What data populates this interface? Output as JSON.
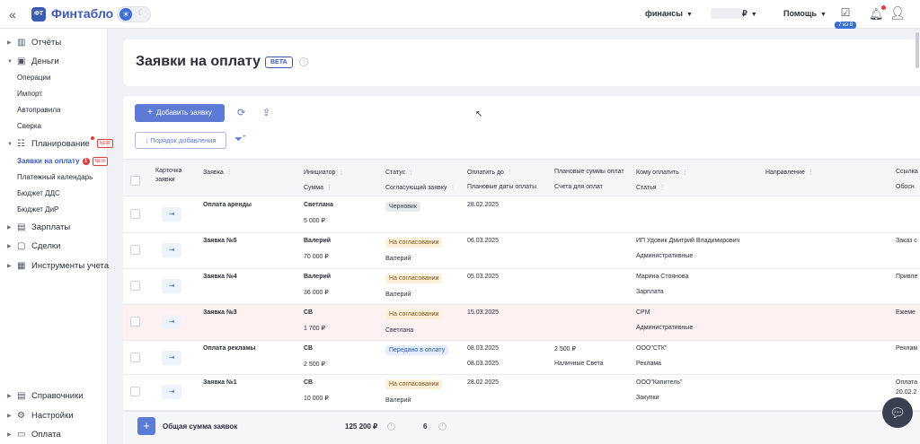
{
  "app": {
    "logo_badge": "ФТ",
    "logo_text": "Финтабло",
    "collapse_icon": "«"
  },
  "topbar": {
    "company": "финансы",
    "currency": "₽",
    "help": "Помощь",
    "tasks_badge": "7 из 8"
  },
  "sidebar": {
    "top_items": [
      {
        "label": "Отчёты",
        "icon": "chart-icon",
        "expanded": false
      },
      {
        "label": "Деньги",
        "icon": "wallet-icon",
        "expanded": true
      }
    ],
    "money_sub": [
      "Операции",
      "Импорт",
      "Автоправила",
      "Сверка"
    ],
    "planning": {
      "label": "Планирование",
      "new": "NEW"
    },
    "planning_sub": [
      {
        "label": "Заявки на оплату",
        "count": "1",
        "new": "NEW"
      },
      {
        "label": "Платежный календарь"
      },
      {
        "label": "Бюджет ДДС"
      },
      {
        "label": "Бюджет ДиР"
      }
    ],
    "mid_items": [
      "Зарплаты",
      "Сделки",
      "Инструменты учета"
    ],
    "bottom_items": [
      "Справочники",
      "Настройки",
      "Оплата"
    ]
  },
  "page": {
    "title": "Заявки на оплату",
    "beta": "BETA",
    "info": "i"
  },
  "toolbar": {
    "add_label": "Добавить заявку",
    "sort_label": "↓  Порядок добавления"
  },
  "table": {
    "headers": {
      "card": "Карточка заявки",
      "request": "Заявка",
      "initiator": "Инициатор",
      "amount": "Сумма",
      "status": "Статус",
      "approver": "Согласующий заявку",
      "pay_by": "Оплатить до",
      "planned_dates": "Плановые даты оплаты",
      "planned_sums": "Плановые суммы оплат",
      "bills": "Счета для оплат",
      "payee": "Кому оплатить",
      "article": "Статья",
      "direction": "Направление",
      "link": "Ссылка",
      "reason": "Обосн"
    },
    "rows": [
      {
        "name": "Оплата аренды",
        "initiator": "Светлана",
        "amount": "5 000 ₽",
        "status": "Черновик",
        "status_type": "draft",
        "approver": "",
        "pay_by": "28.02.2025",
        "pay_by2": "",
        "psum": "",
        "bill": "",
        "payee": "",
        "article": "",
        "extra": "",
        "extra2": "",
        "highlight": false
      },
      {
        "name": "Заявка №5",
        "initiator": "Валерий",
        "amount": "70 000 ₽",
        "status": "На согласовании",
        "status_type": "app",
        "approver": "Валерий",
        "pay_by": "06.03.2025",
        "pay_by2": "",
        "psum": "",
        "bill": "",
        "payee": "ИП Удовик Дмитрий Владимирович",
        "article": "Административные",
        "extra": "Заказ с",
        "extra2": "",
        "highlight": false
      },
      {
        "name": "Заявка №4",
        "initiator": "Валерий",
        "amount": "36 000 ₽",
        "status": "На согласовании",
        "status_type": "app",
        "approver": "Валерий",
        "pay_by": "05.03.2025",
        "pay_by2": "",
        "psum": "",
        "bill": "",
        "payee": "Марина Стоянова",
        "article": "Зарплата",
        "extra": "Привле",
        "extra2": "",
        "highlight": false
      },
      {
        "name": "Заявка №3",
        "initiator": "СВ",
        "amount": "1 700 ₽",
        "status": "На согласовании",
        "status_type": "app",
        "approver": "Светлана",
        "pay_by": "15.03.2025",
        "pay_by2": "",
        "psum": "",
        "bill": "",
        "payee": "CPM",
        "article": "Административные",
        "extra": "Ежеме",
        "extra2": "",
        "highlight": true
      },
      {
        "name": "Оплата рекламы",
        "initiator": "СВ",
        "amount": "2 500 ₽",
        "status": "Передано в оплату",
        "status_type": "paid",
        "approver": "",
        "pay_by": "08.03.2025",
        "pay_by2": "08.03.2025",
        "psum": "2 500 ₽",
        "bill": "Наличные Света",
        "payee": "ООО\"СТК\"",
        "article": "Реклама",
        "extra": "Реклам",
        "extra2": "",
        "highlight": false
      },
      {
        "name": "Заявка №1",
        "initiator": "СВ",
        "amount": "10 000 ₽",
        "status": "На согласовании",
        "status_type": "app",
        "approver": "Валерий",
        "pay_by": "28.02.2025",
        "pay_by2": "",
        "psum": "",
        "bill": "",
        "payee": "ООО\"Капитель\"",
        "article": "Закупки",
        "extra": "Оплата",
        "extra2": "20.02.2",
        "highlight": false
      }
    ]
  },
  "footer": {
    "label": "Общая сумма заявок",
    "total": "125 200 ₽",
    "count": "6"
  }
}
